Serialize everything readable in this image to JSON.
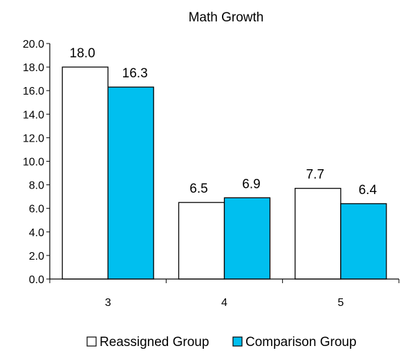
{
  "chart_data": {
    "type": "bar",
    "title": "Math Growth",
    "xlabel": "",
    "ylabel": "",
    "categories": [
      "3",
      "4",
      "5"
    ],
    "series": [
      {
        "name": "Reassigned Group",
        "values": [
          18.0,
          6.5,
          7.7
        ],
        "color": "#ffffff",
        "labels": [
          "18.0",
          "6.5",
          "7.7"
        ]
      },
      {
        "name": "Comparison Group",
        "values": [
          16.3,
          6.9,
          6.4
        ],
        "color": "#00bfef",
        "labels": [
          "16.3",
          "6.9",
          "6.4"
        ]
      }
    ],
    "ylim": [
      0,
      20
    ],
    "yticks": [
      "0.0",
      "2.0",
      "4.0",
      "6.0",
      "8.0",
      "10.0",
      "12.0",
      "14.0",
      "16.0",
      "18.0",
      "20.0"
    ],
    "grid": false,
    "legend_position": "bottom"
  }
}
